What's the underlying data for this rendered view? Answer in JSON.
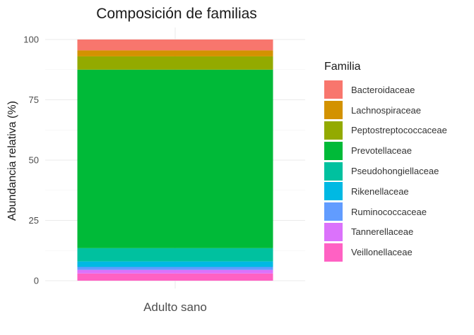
{
  "chart_data": {
    "type": "bar",
    "stacked": true,
    "title": "Composición de familias",
    "xlabel": "",
    "ylabel": "Abundancia relativa (%)",
    "categories": [
      "Adulto sano"
    ],
    "ylim": [
      0,
      100
    ],
    "yticks": [
      "0",
      "25",
      "50",
      "75",
      "100"
    ],
    "grid": true,
    "legend_title": "Familia",
    "legend_position": "right",
    "series": [
      {
        "name": "Bacteroidaceae",
        "color": "#F8766D",
        "values": [
          4.5
        ]
      },
      {
        "name": "Lachnospiraceae",
        "color": "#D39200",
        "values": [
          2.5
        ]
      },
      {
        "name": "Peptostreptococcaceae",
        "color": "#93AA00",
        "values": [
          5.5
        ]
      },
      {
        "name": "Prevotellaceae",
        "color": "#00BA38",
        "values": [
          74.0
        ]
      },
      {
        "name": "Pseudohongiellaceae",
        "color": "#00C19F",
        "values": [
          5.5
        ]
      },
      {
        "name": "Rikenellaceae",
        "color": "#00B9E3",
        "values": [
          2.3
        ]
      },
      {
        "name": "Ruminococcaceae",
        "color": "#619CFF",
        "values": [
          1.2
        ]
      },
      {
        "name": "Tannerellaceae",
        "color": "#DB72FB",
        "values": [
          1.5
        ]
      },
      {
        "name": "Veillonellaceae",
        "color": "#FF61C3",
        "values": [
          3.0
        ]
      }
    ]
  }
}
